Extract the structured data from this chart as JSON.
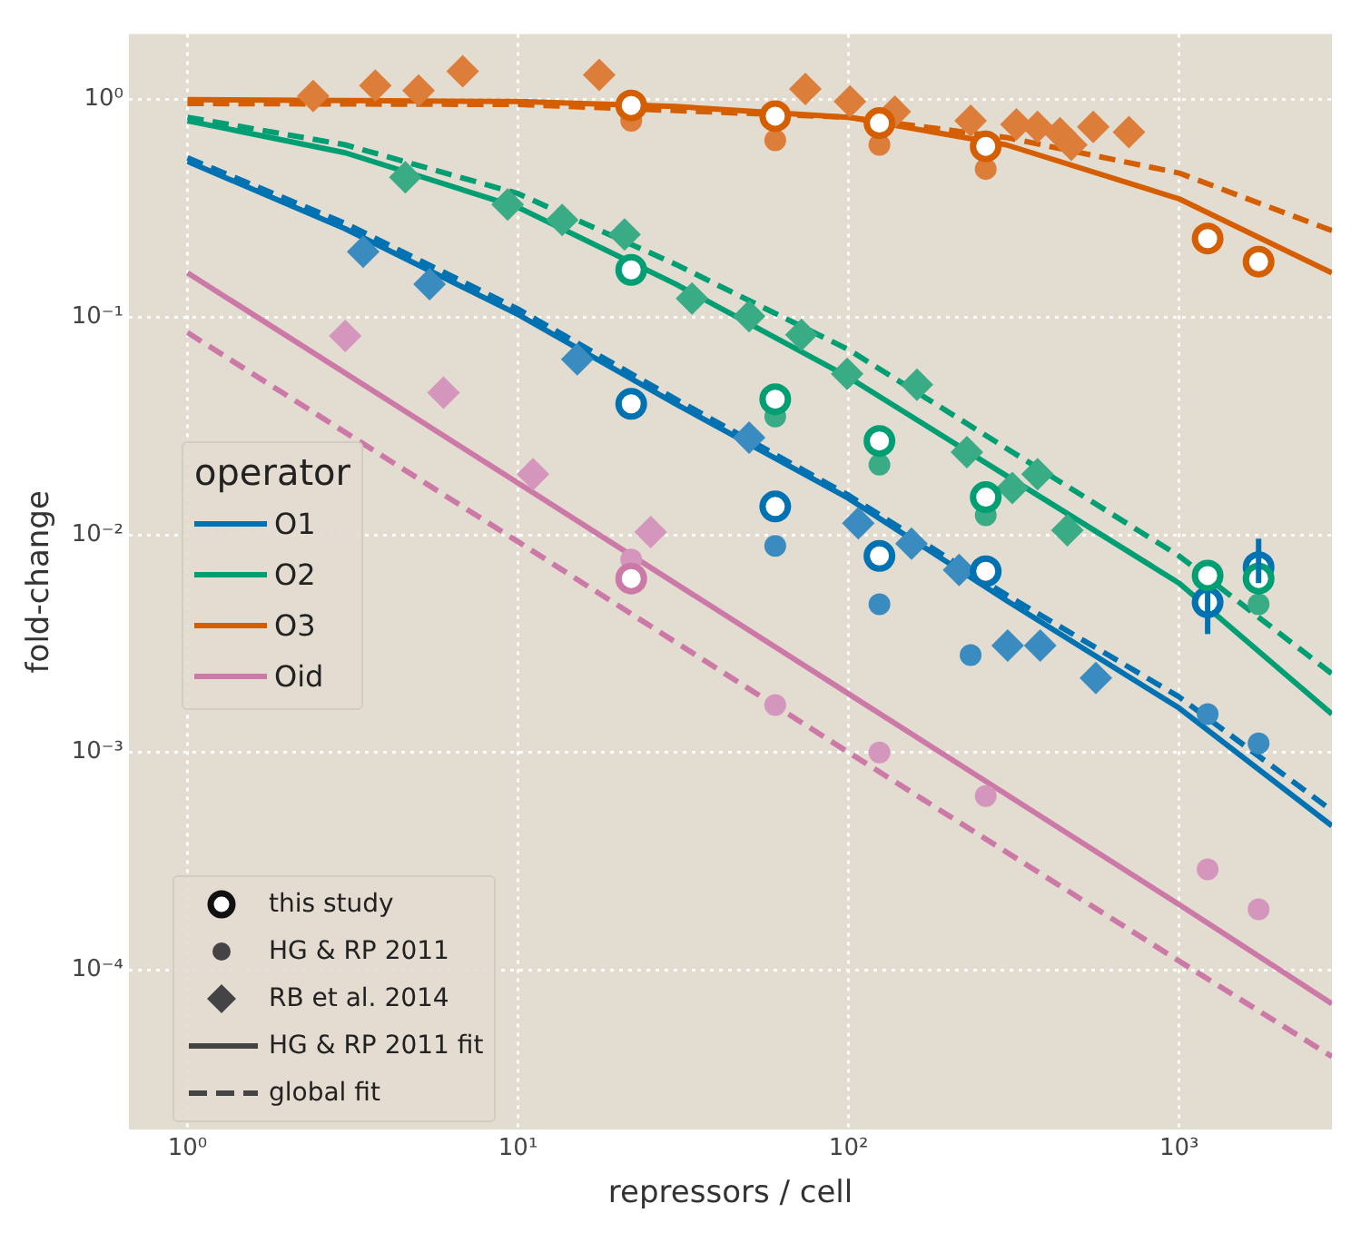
{
  "chart_data": {
    "type": "scatter",
    "xlabel": "repressors / cell",
    "ylabel": "fold-change",
    "log": "xy",
    "grid": true,
    "legend": "left",
    "legend_title": "operator",
    "xlim": [
      0.665,
      2900
    ],
    "ylim": [
      1.85e-05,
      2
    ],
    "xticks": [
      {
        "value": 1,
        "label": "10⁰"
      },
      {
        "value": 10,
        "label": "10¹"
      },
      {
        "value": 100,
        "label": "10²"
      },
      {
        "value": 1000,
        "label": "10³"
      }
    ],
    "yticks": [
      {
        "value": 0.0001,
        "label": "10⁻⁴"
      },
      {
        "value": 0.001,
        "label": "10⁻³"
      },
      {
        "value": 0.01,
        "label": "10⁻²"
      },
      {
        "value": 0.1,
        "label": "10⁻¹"
      },
      {
        "value": 1,
        "label": "10⁰"
      }
    ],
    "annotations": [
      "this study",
      "HG & RP 2011",
      "RB et al. 2014",
      "HG & RP 2011 fit",
      "global fit"
    ],
    "series": [
      {
        "type": "line",
        "name": "O1",
        "color": "#0072b2",
        "line_style": "solid",
        "x": [
          1,
          3,
          10,
          30,
          100,
          300,
          1000,
          2900
        ],
        "values": [
          0.52,
          0.255,
          0.103,
          0.04,
          0.0147,
          0.005,
          0.0016,
          0.00046
        ]
      },
      {
        "type": "line",
        "name": "O2",
        "color": "#009e73",
        "line_style": "solid",
        "x": [
          1,
          3,
          10,
          30,
          100,
          300,
          1000,
          2900
        ],
        "values": [
          0.8,
          0.57,
          0.32,
          0.142,
          0.053,
          0.0187,
          0.006,
          0.0015
        ]
      },
      {
        "type": "line",
        "name": "O3",
        "color": "#d55e00",
        "line_style": "solid",
        "x": [
          1,
          10,
          30,
          100,
          300,
          1000,
          2900
        ],
        "values": [
          1.0,
          0.98,
          0.93,
          0.83,
          0.62,
          0.35,
          0.16
        ]
      },
      {
        "type": "line",
        "name": "Oid",
        "color": "#cc79a7",
        "line_style": "solid",
        "x": [
          1,
          10,
          100,
          1000,
          2900
        ],
        "values": [
          0.16,
          0.0173,
          0.00186,
          0.0002,
          7e-05
        ]
      },
      {
        "type": "line",
        "color": "#0072b2",
        "line_style": "dashed",
        "x": [
          1,
          3,
          10,
          30,
          100,
          300,
          1000,
          2900
        ],
        "values": [
          0.54,
          0.27,
          0.109,
          0.042,
          0.0152,
          0.0053,
          0.0018,
          0.00054
        ]
      },
      {
        "type": "line",
        "color": "#009e73",
        "line_style": "dashed",
        "x": [
          1,
          3,
          10,
          30,
          100,
          300,
          1000,
          2900
        ],
        "values": [
          0.83,
          0.62,
          0.37,
          0.175,
          0.071,
          0.025,
          0.008,
          0.0023
        ]
      },
      {
        "type": "line",
        "color": "#d55e00",
        "line_style": "dashed",
        "x": [
          1,
          10,
          100,
          300,
          1000,
          2900
        ],
        "values": [
          0.96,
          0.95,
          0.83,
          0.67,
          0.46,
          0.25
        ]
      },
      {
        "type": "line",
        "color": "#cc79a7",
        "line_style": "dashed",
        "x": [
          1,
          10,
          100,
          1000,
          2900
        ],
        "values": [
          0.085,
          0.0093,
          0.001,
          0.00011,
          4e-05
        ]
      },
      {
        "marker": "diamond",
        "color": "#3a8cc0",
        "x": [
          3.4,
          5.4,
          15.1,
          50,
          107,
          155,
          216,
          303,
          380,
          560
        ],
        "values": [
          0.2,
          0.142,
          0.064,
          0.028,
          0.0113,
          0.0091,
          0.0069,
          0.0031,
          0.0031,
          0.0022
        ]
      },
      {
        "marker": "diamond",
        "color": "#3aac85",
        "x": [
          4.56,
          9.3,
          13.6,
          21,
          33.6,
          50,
          72,
          99,
          161,
          228,
          313,
          373,
          459
        ],
        "values": [
          0.44,
          0.33,
          0.28,
          0.24,
          0.122,
          0.101,
          0.083,
          0.055,
          0.049,
          0.024,
          0.0164,
          0.019,
          0.0105
        ]
      },
      {
        "marker": "diamond",
        "color": "#dd7d3a",
        "x": [
          2.4,
          3.7,
          5,
          6.8,
          17.6,
          74,
          101,
          138,
          234,
          322,
          373,
          436,
          472,
          550,
          705
        ],
        "values": [
          1.04,
          1.16,
          1.1,
          1.35,
          1.3,
          1.12,
          0.98,
          0.88,
          0.8,
          0.77,
          0.75,
          0.7,
          0.62,
          0.75,
          0.71
        ]
      },
      {
        "marker": "diamond",
        "color": "#d596bd",
        "x": [
          3,
          5.95,
          11.1,
          25.2
        ],
        "values": [
          0.082,
          0.045,
          0.019,
          0.0103
        ]
      },
      {
        "marker": "circle",
        "color": "#3a8cc0",
        "x": [
          60,
          124,
          234,
          1220,
          1740
        ],
        "values": [
          0.0089,
          0.0048,
          0.0028,
          0.0015,
          0.0011
        ]
      },
      {
        "marker": "circle",
        "color": "#3aac85",
        "x": [
          60,
          124,
          260,
          1740
        ],
        "values": [
          0.035,
          0.021,
          0.0123,
          0.0048
        ]
      },
      {
        "marker": "circle",
        "color": "#dd7d3a",
        "x": [
          22,
          60,
          124,
          260
        ],
        "values": [
          0.8,
          0.65,
          0.62,
          0.48
        ]
      },
      {
        "marker": "circle",
        "color": "#d596bd",
        "x": [
          22,
          60,
          124,
          260,
          1220,
          1740
        ],
        "values": [
          0.0077,
          0.00165,
          0.001,
          0.00063,
          0.00029,
          0.00019
        ]
      },
      {
        "marker": "circle",
        "color": "#0072b2",
        "x": [
          22,
          60,
          124,
          260,
          1220,
          1740
        ],
        "values": [
          0.04,
          0.0135,
          0.008,
          0.0068,
          0.0049,
          0.0071
        ],
        "errors": [
          null,
          null,
          null,
          null,
          [
            0.0035,
            0.0055
          ],
          [
            0.006,
            0.0096
          ]
        ]
      },
      {
        "marker": "circle",
        "color": "#009e73",
        "x": [
          22,
          60,
          124,
          260,
          1220,
          1740
        ],
        "values": [
          0.165,
          0.042,
          0.027,
          0.0149,
          0.0065,
          0.0063
        ],
        "errors": [
          null,
          null,
          null,
          null,
          null,
          null
        ]
      },
      {
        "marker": "circle",
        "color": "#d55e00",
        "x": [
          22,
          60,
          124,
          260,
          1220,
          1740
        ],
        "values": [
          0.94,
          0.84,
          0.78,
          0.61,
          0.23,
          0.18
        ],
        "errors": [
          null,
          null,
          null,
          null,
          null,
          null
        ]
      },
      {
        "marker": "circle",
        "color": "#cc79a7",
        "x": [
          22
        ],
        "values": [
          0.0063
        ],
        "errors": [
          null
        ]
      }
    ]
  }
}
